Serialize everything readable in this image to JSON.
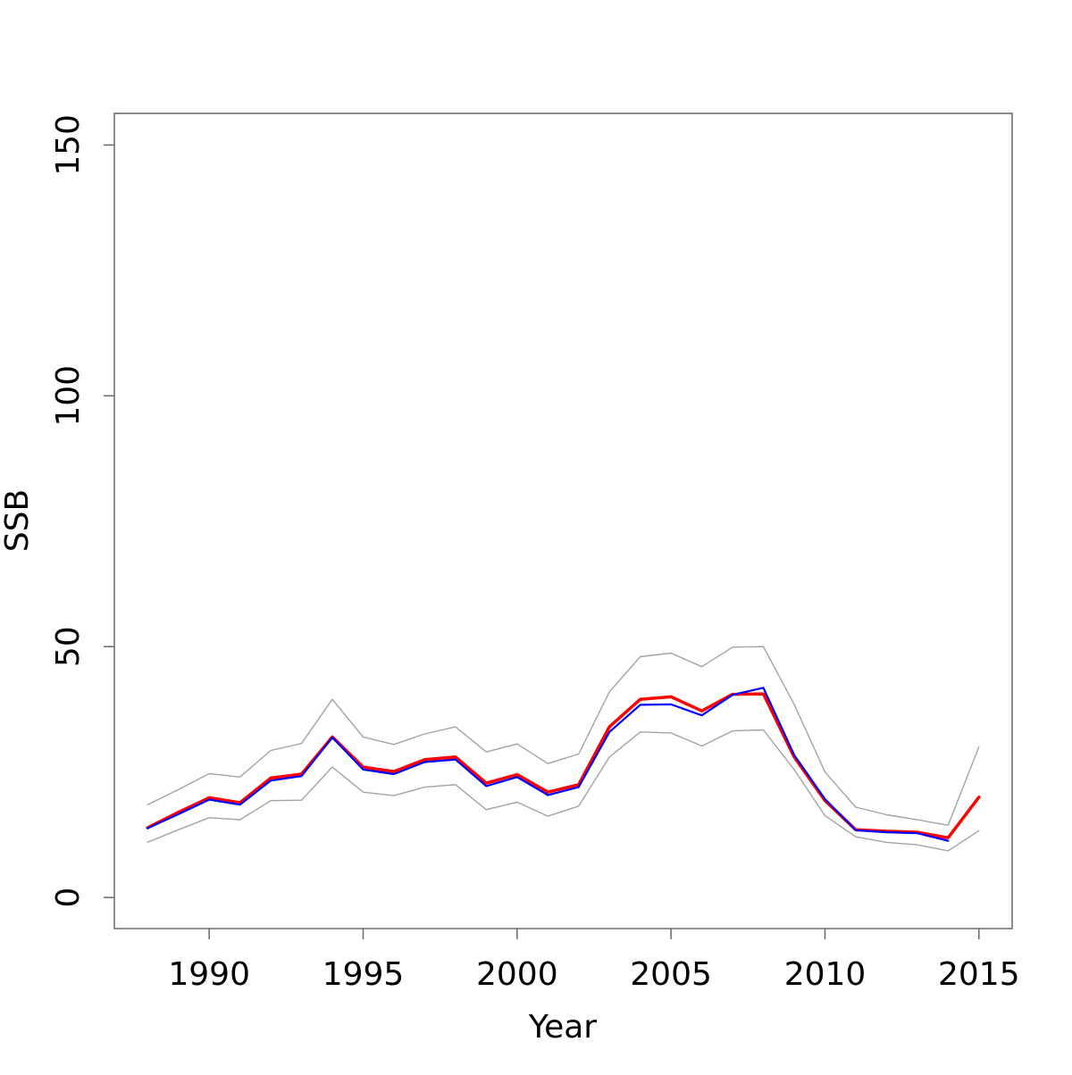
{
  "figure": {
    "background": "#ffffff",
    "border_color": "#666666",
    "tick_color": "#666666",
    "text_color": "#000000"
  },
  "chart_data": {
    "type": "line",
    "title": "",
    "xlabel": "Year",
    "ylabel": "SSB",
    "grid": false,
    "legend": "none",
    "xlim": [
      1986.92,
      2016.08
    ],
    "ylim": [
      -6.2,
      156.3
    ],
    "x_ticks": [
      1990,
      1995,
      2000,
      2005,
      2010,
      2015
    ],
    "y_ticks": [
      0,
      50,
      100,
      150
    ],
    "x": [
      1988,
      1989,
      1990,
      1991,
      1992,
      1993,
      1994,
      1995,
      1996,
      1997,
      1998,
      1999,
      2000,
      2001,
      2002,
      2003,
      2004,
      2005,
      2006,
      2007,
      2008,
      2009,
      2010,
      2011,
      2012,
      2013,
      2014,
      2015
    ],
    "series": [
      {
        "name": "ci-upper",
        "color": "#a3a3a3",
        "width": 1.4,
        "values": [
          18.5,
          21.5,
          24.7,
          24,
          29.3,
          30.7,
          39.5,
          32,
          30.5,
          32.6,
          34,
          29,
          30.6,
          26.7,
          28.6,
          41,
          48,
          48.7,
          46,
          49.9,
          50,
          38.5,
          25,
          18,
          16.5,
          15.5,
          14.4,
          30
        ]
      },
      {
        "name": "ci-lower",
        "color": "#a3a3a3",
        "width": 1.4,
        "values": [
          11,
          13.5,
          15.9,
          15.5,
          19.3,
          19.4,
          26,
          21,
          20.3,
          22,
          22.5,
          17.5,
          19,
          16.2,
          18.2,
          28,
          33,
          32.8,
          30.2,
          33.2,
          33.4,
          25.5,
          16.3,
          12.1,
          11,
          10.5,
          9.3,
          13.3
        ]
      },
      {
        "name": "ssb-estimate-red",
        "color": "#ff0000",
        "width": 3.5,
        "values": [
          13.9,
          17,
          19.9,
          18.9,
          23.8,
          24.6,
          32,
          26,
          25.1,
          27.5,
          28,
          22.8,
          24.5,
          21,
          22.5,
          34,
          39.5,
          40,
          37.2,
          40.5,
          40.6,
          28,
          19.3,
          13.5,
          13.2,
          13,
          11.9,
          20
        ]
      },
      {
        "name": "ssb-previous-blue",
        "color": "#0000ff",
        "width": 2.2,
        "values": [
          13.8,
          16.6,
          19.5,
          18.5,
          23.3,
          24.2,
          31.9,
          25.5,
          24.6,
          27,
          27.5,
          22.2,
          24,
          20.4,
          22,
          33,
          38.4,
          38.5,
          36.3,
          40.4,
          41.8,
          28.4,
          19.6,
          13.4,
          13,
          12.8,
          11.3,
          null
        ]
      }
    ]
  }
}
